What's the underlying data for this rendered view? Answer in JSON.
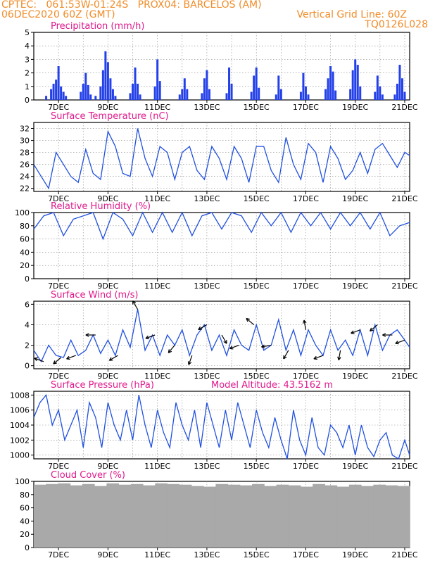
{
  "header": {
    "line1_left": "CPTEC:   061:53W-01:24S   PROX04: BARCELOS (AM)",
    "line2_left": "06DEC2020 60Z (GMT)",
    "line2_right": "Vertical Grid Line: 60Z",
    "line3_right": "TQ0126L028"
  },
  "x_ticks": [
    "7DEC",
    "9DEC",
    "11DEC",
    "13DEC",
    "15DEC",
    "17DEC",
    "19DEC",
    "21DEC"
  ],
  "colors": {
    "header": "#f08c28",
    "title": "#e0198c",
    "series": "#2050e0",
    "bar": "#2440e8",
    "cloud": "#a9a9a9",
    "grid": "#888888"
  },
  "chart_data": [
    {
      "type": "bar",
      "title": "Precipitation (mm/h)",
      "ylim": [
        0,
        5
      ],
      "yticks": [
        0,
        1,
        2,
        3,
        4,
        5
      ],
      "x_range_days": [
        0,
        15.2
      ],
      "x": [
        0.5,
        0.7,
        0.8,
        0.9,
        1.0,
        1.1,
        1.2,
        1.3,
        1.9,
        2.0,
        2.1,
        2.2,
        2.3,
        2.5,
        2.7,
        2.8,
        2.9,
        3.0,
        3.1,
        3.2,
        3.3,
        3.9,
        4.0,
        4.1,
        4.2,
        4.3,
        4.9,
        5.0,
        5.1,
        5.9,
        6.0,
        6.1,
        6.2,
        6.8,
        6.9,
        7.0,
        7.1,
        7.8,
        7.9,
        8.0,
        8.8,
        8.9,
        9.0,
        9.1,
        9.8,
        9.9,
        10.0,
        10.8,
        10.9,
        11.0,
        11.1,
        11.8,
        11.9,
        12.0,
        12.1,
        12.2,
        12.8,
        12.9,
        13.0,
        13.1,
        13.2,
        13.8,
        13.9,
        14.0,
        14.1,
        14.6,
        14.7,
        14.8,
        14.9,
        15.0
      ],
      "values": [
        0.3,
        0.8,
        1.2,
        1.5,
        2.5,
        1.0,
        0.6,
        0.3,
        0.6,
        1.2,
        2.0,
        1.1,
        0.4,
        0.3,
        1.0,
        2.2,
        3.6,
        2.8,
        1.6,
        0.8,
        0.3,
        0.5,
        1.2,
        2.4,
        1.2,
        0.4,
        1.0,
        3.0,
        1.4,
        0.4,
        0.8,
        1.6,
        0.8,
        0.5,
        1.6,
        2.2,
        0.8,
        0.5,
        2.4,
        1.2,
        0.6,
        1.8,
        2.4,
        0.9,
        0.4,
        1.8,
        0.8,
        0.6,
        2.0,
        1.0,
        0.4,
        0.8,
        1.6,
        2.5,
        2.1,
        0.7,
        0.8,
        2.2,
        3.0,
        2.6,
        1.0,
        0.6,
        1.8,
        1.0,
        0.4,
        0.4,
        1.2,
        2.6,
        1.6,
        0.6
      ]
    },
    {
      "type": "line",
      "title": "Surface Temperature (nC)",
      "ylim": [
        21.5,
        33
      ],
      "yticks": [
        22,
        24,
        26,
        28,
        30,
        32
      ],
      "x_range_days": [
        0,
        15.2
      ],
      "x": [
        0,
        0.3,
        0.6,
        0.9,
        1.2,
        1.5,
        1.8,
        2.1,
        2.4,
        2.7,
        3.0,
        3.3,
        3.6,
        3.9,
        4.2,
        4.5,
        4.8,
        5.1,
        5.4,
        5.7,
        6.0,
        6.3,
        6.6,
        6.9,
        7.2,
        7.5,
        7.8,
        8.1,
        8.4,
        8.7,
        9.0,
        9.3,
        9.6,
        9.9,
        10.2,
        10.5,
        10.8,
        11.1,
        11.4,
        11.7,
        12.0,
        12.3,
        12.6,
        12.9,
        13.2,
        13.5,
        13.8,
        14.1,
        14.4,
        14.7,
        15.0,
        15.2
      ],
      "values": [
        26.0,
        24.0,
        22.0,
        28.0,
        26.0,
        24.0,
        23.0,
        28.5,
        24.5,
        23.5,
        31.5,
        29.0,
        24.5,
        24.0,
        32.0,
        27.0,
        24.0,
        29.0,
        28.0,
        23.5,
        28.0,
        29.0,
        25.0,
        23.5,
        29.0,
        27.0,
        23.5,
        29.0,
        27.0,
        23.0,
        29.0,
        29.0,
        25.0,
        23.0,
        30.5,
        26.0,
        23.5,
        29.5,
        28.0,
        23.0,
        29.0,
        27.0,
        23.5,
        25.0,
        28.0,
        24.5,
        28.5,
        29.5,
        27.5,
        25.5,
        28.0,
        27.5
      ]
    },
    {
      "type": "line",
      "title": "Relative Humidity (%)",
      "ylim": [
        0,
        100
      ],
      "yticks": [
        0,
        20,
        40,
        60,
        80,
        100
      ],
      "x_range_days": [
        0,
        15.2
      ],
      "x": [
        0,
        0.4,
        0.8,
        1.2,
        1.6,
        2.0,
        2.4,
        2.8,
        3.2,
        3.6,
        4.0,
        4.4,
        4.8,
        5.2,
        5.6,
        6.0,
        6.4,
        6.8,
        7.2,
        7.6,
        8.0,
        8.4,
        8.8,
        9.2,
        9.6,
        10.0,
        10.4,
        10.8,
        11.2,
        11.6,
        12.0,
        12.4,
        12.8,
        13.2,
        13.6,
        14.0,
        14.4,
        14.8,
        15.2
      ],
      "values": [
        75,
        95,
        100,
        65,
        90,
        95,
        100,
        60,
        100,
        90,
        65,
        100,
        70,
        100,
        70,
        100,
        65,
        95,
        100,
        75,
        100,
        95,
        70,
        100,
        80,
        100,
        70,
        100,
        80,
        100,
        75,
        100,
        80,
        100,
        75,
        100,
        65,
        80,
        85
      ]
    },
    {
      "type": "line",
      "title": "Surface Wind (m/s)",
      "ylim": [
        -0.3,
        6.3
      ],
      "yticks": [
        0,
        2,
        4,
        6
      ],
      "x_range_days": [
        0,
        15.2
      ],
      "x": [
        0,
        0.3,
        0.6,
        0.9,
        1.2,
        1.5,
        1.8,
        2.1,
        2.4,
        2.7,
        3.0,
        3.3,
        3.6,
        3.9,
        4.2,
        4.5,
        4.8,
        5.1,
        5.4,
        5.7,
        6.0,
        6.3,
        6.6,
        6.9,
        7.2,
        7.5,
        7.8,
        8.1,
        8.4,
        8.7,
        9.0,
        9.3,
        9.6,
        9.9,
        10.2,
        10.5,
        10.8,
        11.1,
        11.4,
        11.7,
        12.0,
        12.3,
        12.6,
        12.9,
        13.2,
        13.5,
        13.8,
        14.1,
        14.4,
        14.7,
        15.0,
        15.2
      ],
      "values": [
        1.5,
        0.4,
        2.0,
        1.0,
        0.8,
        2.5,
        1.0,
        1.5,
        3.0,
        1.2,
        2.5,
        1.0,
        3.5,
        1.8,
        5.5,
        1.5,
        3.0,
        1.0,
        3.0,
        2.0,
        3.5,
        1.0,
        3.0,
        4.0,
        1.5,
        3.0,
        1.0,
        3.5,
        2.0,
        1.5,
        4.0,
        1.5,
        2.0,
        4.5,
        1.5,
        3.5,
        1.0,
        3.5,
        2.0,
        1.0,
        3.5,
        1.5,
        2.5,
        1.0,
        3.5,
        1.0,
        4.0,
        1.5,
        3.0,
        3.5,
        2.5,
        1.8
      ],
      "arrows_x": [
        0.4,
        1.1,
        1.7,
        2.5,
        3.4,
        4.2,
        4.9,
        5.7,
        6.4,
        7.0,
        7.6,
        8.3,
        8.9,
        9.6,
        10.3,
        11.0,
        11.7,
        12.4,
        13.2,
        13.9,
        14.5,
        15.0
      ],
      "arrows_deg": [
        160,
        220,
        200,
        180,
        210,
        120,
        200,
        230,
        250,
        210,
        300,
        200,
        140,
        190,
        240,
        100,
        200,
        260,
        200,
        220,
        180,
        200
      ]
    },
    {
      "type": "line",
      "title": "Surface Pressure (hPa)",
      "annotation": "Model Altitude: 43.5162  m",
      "ylim": [
        999.5,
        1008.5
      ],
      "yticks": [
        1000,
        1002,
        1004,
        1006,
        1008
      ],
      "x_range_days": [
        0,
        15.2
      ],
      "x": [
        0,
        0.25,
        0.5,
        0.75,
        1.0,
        1.25,
        1.5,
        1.75,
        2.0,
        2.25,
        2.5,
        2.75,
        3.0,
        3.25,
        3.5,
        3.75,
        4.0,
        4.25,
        4.5,
        4.75,
        5.0,
        5.25,
        5.5,
        5.75,
        6.0,
        6.25,
        6.5,
        6.75,
        7.0,
        7.25,
        7.5,
        7.75,
        8.0,
        8.25,
        8.5,
        8.75,
        9.0,
        9.25,
        9.5,
        9.75,
        10.0,
        10.25,
        10.5,
        10.75,
        11.0,
        11.25,
        11.5,
        11.75,
        12.0,
        12.25,
        12.5,
        12.75,
        13.0,
        13.25,
        13.5,
        13.75,
        14.0,
        14.25,
        14.5,
        14.75,
        15.0,
        15.2
      ],
      "values": [
        1005,
        1007,
        1008,
        1004,
        1006,
        1002,
        1004,
        1006,
        1001,
        1007,
        1005,
        1001,
        1007,
        1004,
        1002,
        1006,
        1002,
        1008,
        1004,
        1001,
        1006,
        1003,
        1001,
        1007,
        1004,
        1002,
        1006,
        1001,
        1007,
        1004,
        1001,
        1006,
        1002,
        1007,
        1004,
        1001,
        1006,
        1003,
        1001,
        1005,
        1002,
        999.5,
        1006,
        1002,
        1000,
        1005,
        1001,
        1000,
        1004,
        1003,
        1001,
        1004,
        1000,
        1004,
        1001,
        999.8,
        1002,
        1003,
        1000,
        999.5,
        1002,
        1000
      ]
    },
    {
      "type": "bar",
      "title": "Cloud Cover (%)",
      "ylim": [
        0,
        100
      ],
      "yticks": [
        0,
        20,
        40,
        60,
        80,
        100
      ],
      "x_range_days": [
        0,
        15.2
      ],
      "x": [
        0.0,
        0.5,
        1.0,
        1.5,
        2.0,
        2.5,
        3.0,
        3.5,
        4.0,
        4.5,
        5.0,
        5.5,
        6.0,
        6.5,
        7.0,
        7.5,
        8.0,
        8.5,
        9.0,
        9.5,
        10.0,
        10.5,
        11.0,
        11.5,
        12.0,
        12.5,
        13.0,
        13.5,
        14.0,
        14.5,
        15.0
      ],
      "values": [
        95,
        96,
        97,
        94,
        96,
        93,
        97,
        95,
        96,
        94,
        97,
        96,
        95,
        93,
        92,
        96,
        95,
        94,
        96,
        93,
        95,
        94,
        92,
        96,
        94,
        92,
        95,
        93,
        95,
        94,
        93
      ]
    }
  ]
}
